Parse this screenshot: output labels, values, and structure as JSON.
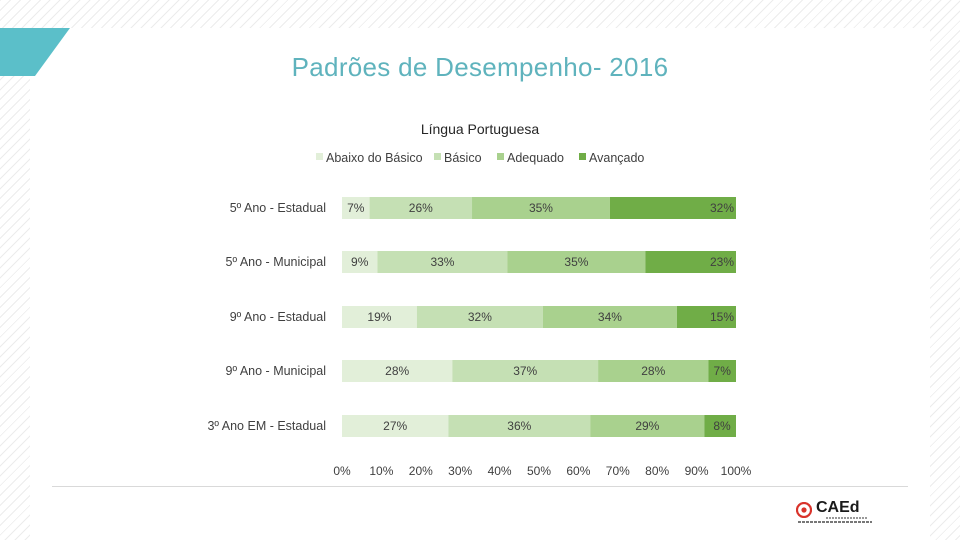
{
  "slide": {
    "title": "Padrões de Desempenho- 2016"
  },
  "chart_data": {
    "type": "bar",
    "orientation": "horizontal",
    "stacked": true,
    "title": "Língua Portuguesa",
    "legend_position": "top",
    "categories": [
      "5º Ano - Estadual",
      "5º Ano - Municipal",
      "9º Ano - Estadual",
      "9º Ano - Municipal",
      "3º Ano EM - Estadual"
    ],
    "series": [
      {
        "name": "Abaixo do Básico",
        "color": "#e2efd9",
        "values": [
          7,
          9,
          19,
          28,
          27
        ]
      },
      {
        "name": "Básico",
        "color": "#c5e0b4",
        "values": [
          26,
          33,
          32,
          37,
          36
        ]
      },
      {
        "name": "Adequado",
        "color": "#a9d18e",
        "values": [
          35,
          35,
          34,
          28,
          29
        ]
      },
      {
        "name": "Avançado",
        "color": "#70ad47",
        "values": [
          32,
          23,
          15,
          7,
          8
        ]
      }
    ],
    "xlim": [
      0,
      100
    ],
    "xticks": [
      "0%",
      "10%",
      "20%",
      "30%",
      "40%",
      "50%",
      "60%",
      "70%",
      "80%",
      "90%",
      "100%"
    ]
  },
  "logo": {
    "text": "CAEd"
  }
}
